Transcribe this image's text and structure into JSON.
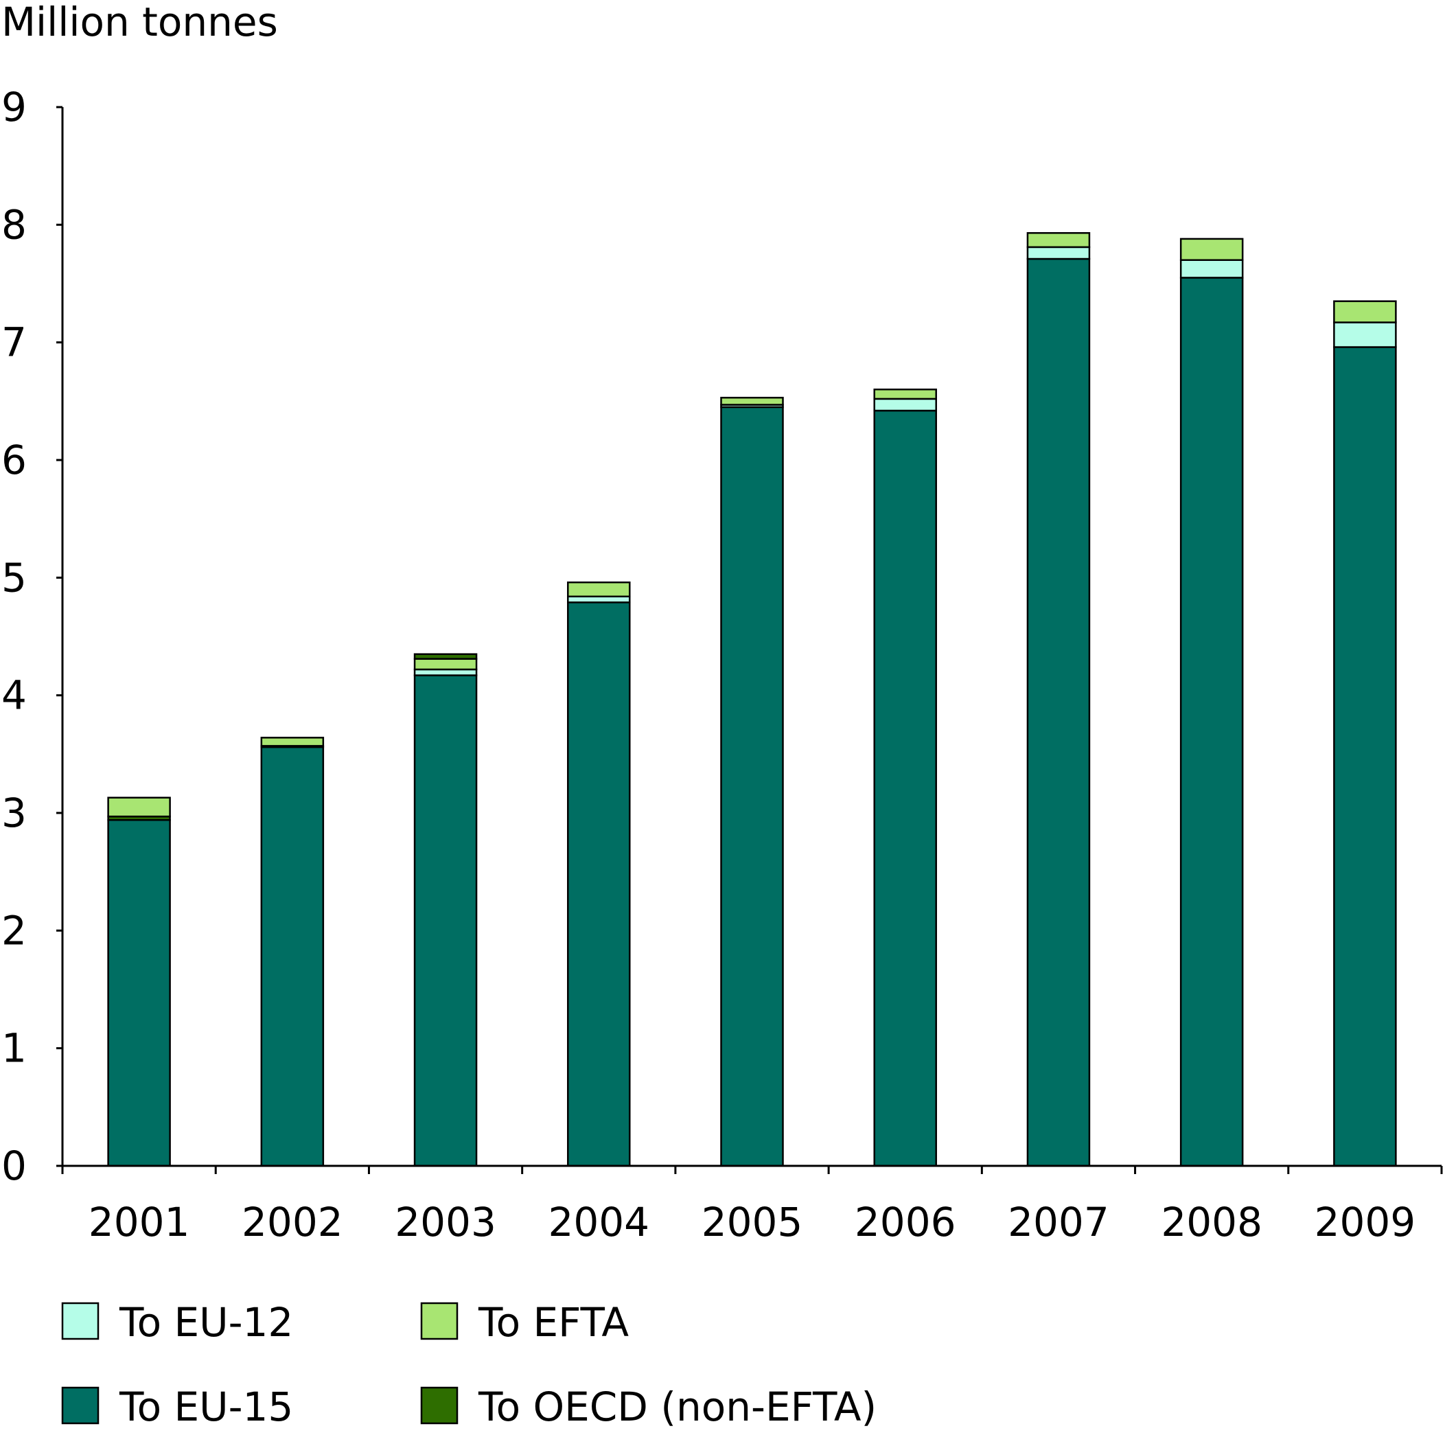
{
  "chart_data": {
    "type": "bar",
    "stacked": true,
    "ylabel": "Million tonnes",
    "xlabel": "",
    "ylim": [
      0,
      9
    ],
    "yticks": [
      0,
      1,
      2,
      3,
      4,
      5,
      6,
      7,
      8,
      9
    ],
    "categories": [
      "2001",
      "2002",
      "2003",
      "2004",
      "2005",
      "2006",
      "2007",
      "2008",
      "2009"
    ],
    "series": [
      {
        "name": "To EU-15",
        "color": "#006e62",
        "values": [
          2.94,
          3.56,
          4.17,
          4.79,
          6.45,
          6.42,
          7.71,
          7.55,
          6.96
        ]
      },
      {
        "name": "To OECD (non-EFTA)",
        "color": "#2e6e00",
        "values": [
          0.03,
          0.0,
          0.0,
          0.0,
          0.0,
          0.0,
          0.0,
          0.0,
          0.0
        ]
      },
      {
        "name": "To EU-12",
        "color": "#b5fde8",
        "values": [
          0.0,
          0.01,
          0.05,
          0.05,
          0.02,
          0.1,
          0.1,
          0.15,
          0.21
        ]
      },
      {
        "name": "To EFTA",
        "color": "#a8e572",
        "values": [
          0.16,
          0.07,
          0.09,
          0.12,
          0.06,
          0.08,
          0.12,
          0.18,
          0.18
        ]
      },
      {
        "name": "",
        "color": "#2e6e00",
        "values": [
          0.0,
          0.0,
          0.04,
          0.0,
          0.0,
          0.0,
          0.0,
          0.0,
          0.0
        ]
      }
    ],
    "legend": {
      "position": "bottom",
      "columns": [
        [
          "To EU-12",
          "To EU-15"
        ],
        [
          "To EFTA",
          "To OECD (non-EFTA)"
        ]
      ]
    },
    "grid": false
  }
}
